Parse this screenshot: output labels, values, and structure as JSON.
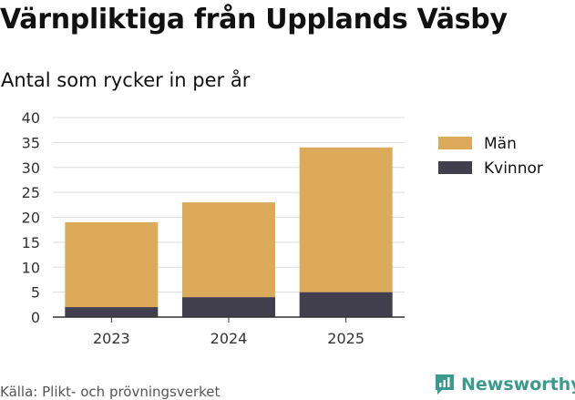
{
  "title": "Värnpliktiga från Upplands Väsby",
  "subtitle": "Antal som rycker in per år",
  "source": "Källa: Plikt- och prövningsverket",
  "brand": "Newsworthy",
  "colors": {
    "man": "#dbaa5a",
    "kvinnor": "#413e4d",
    "grid": "#dddddd",
    "axis": "#333333",
    "brand": "#3a9a8c"
  },
  "icons": {
    "brand_logo": "newsworthy-logo-icon"
  },
  "chart_data": {
    "type": "bar",
    "stacked": true,
    "categories": [
      "2023",
      "2024",
      "2025"
    ],
    "series": [
      {
        "name": "Kvinnor",
        "values": [
          2,
          4,
          5
        ],
        "color": "#413e4d"
      },
      {
        "name": "Män",
        "values": [
          17,
          19,
          29
        ],
        "color": "#dbaa5a"
      }
    ],
    "legend": [
      "Män",
      "Kvinnor"
    ],
    "ylim": [
      0,
      40
    ],
    "yticks": [
      0,
      5,
      10,
      15,
      20,
      25,
      30,
      35,
      40
    ],
    "grid": true,
    "legend_position": "right"
  }
}
